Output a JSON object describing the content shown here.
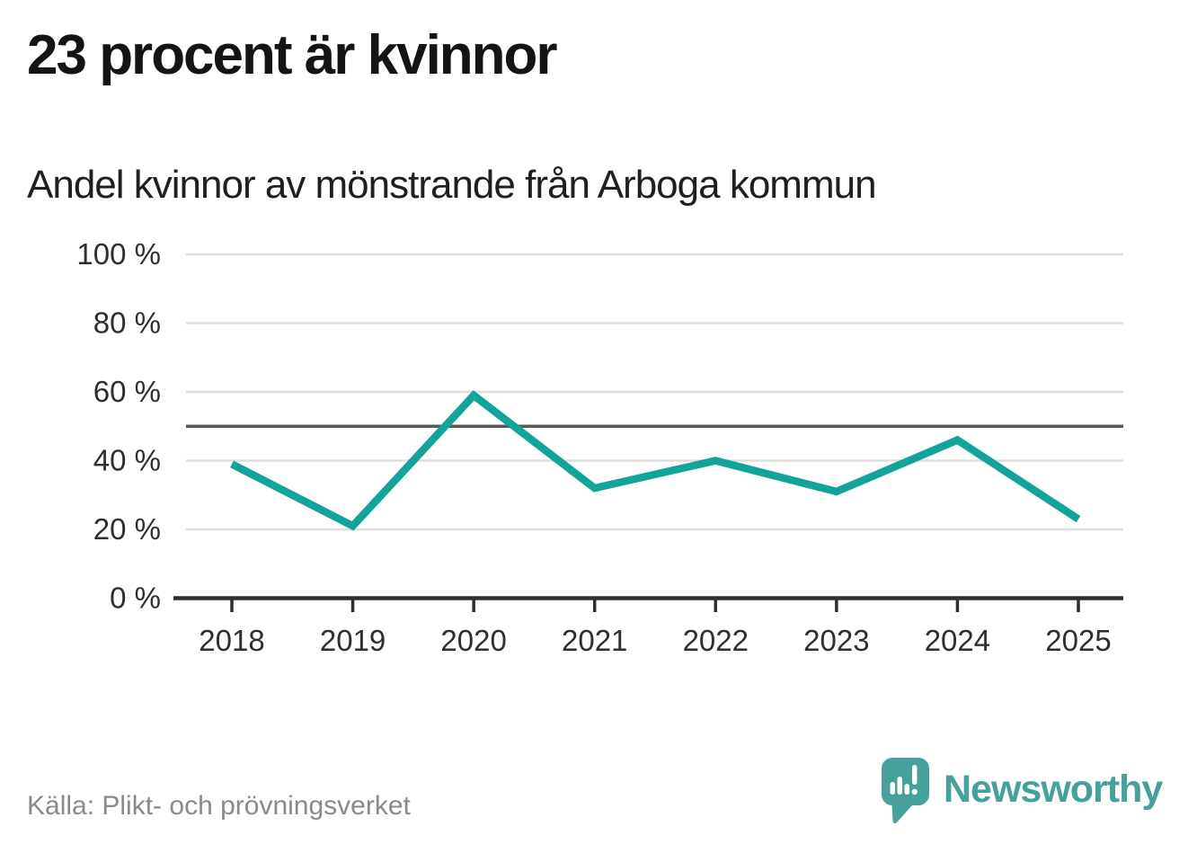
{
  "header": {
    "title": "23 procent är kvinnor",
    "subtitle": "Andel kvinnor av mönstrande från Arboga kommun"
  },
  "chart_data": {
    "type": "line",
    "x": [
      2018,
      2019,
      2020,
      2021,
      2022,
      2023,
      2024,
      2025
    ],
    "series": [
      {
        "name": "Andel kvinnor av mönstrande",
        "values": [
          39,
          21,
          59,
          32,
          40,
          31,
          46,
          23
        ]
      }
    ],
    "title": "23 procent är kvinnor",
    "subtitle": "Andel kvinnor av mönstrande från Arboga kommun",
    "xlabel": "",
    "ylabel": "",
    "ylim": [
      0,
      100
    ],
    "yticks": [
      0,
      20,
      40,
      60,
      80,
      100
    ],
    "ytick_suffix": " %",
    "reference_line": 50,
    "grid": true,
    "legend_position": "none"
  },
  "footer": {
    "source": "Källa: Plikt- och prövningsverket",
    "brand": "Newsworthy"
  },
  "colors": {
    "line": "#12a39a",
    "grid": "#dddddd",
    "reference": "#595959",
    "axis": "#2e2e2e",
    "brand": "#46a09b",
    "source_text": "#8a8a8a"
  }
}
